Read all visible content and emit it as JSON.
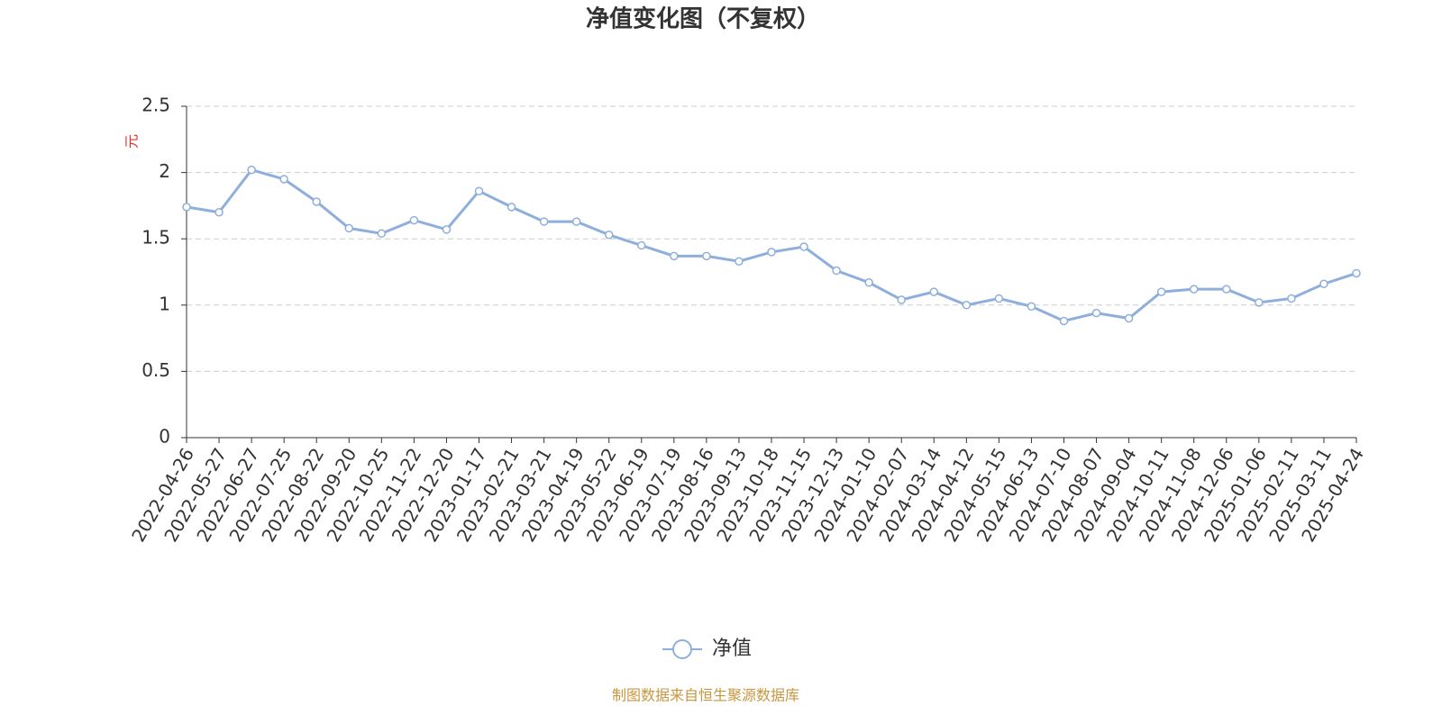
{
  "chart_data": {
    "type": "line",
    "title": "净值变化图（不复权）",
    "y_label": "元",
    "source": "制图数据来自恒生聚源数据库",
    "categories": [
      "2022-04-26",
      "2022-05-27",
      "2022-06-27",
      "2022-07-25",
      "2022-08-22",
      "2022-09-20",
      "2022-10-25",
      "2022-11-22",
      "2022-12-20",
      "2023-01-17",
      "2023-02-21",
      "2023-03-21",
      "2023-04-19",
      "2023-05-22",
      "2023-06-19",
      "2023-07-19",
      "2023-08-16",
      "2023-09-13",
      "2023-10-18",
      "2023-11-15",
      "2023-12-13",
      "2024-01-10",
      "2024-02-07",
      "2024-03-14",
      "2024-04-12",
      "2024-05-15",
      "2024-06-13",
      "2024-07-10",
      "2024-08-07",
      "2024-09-04",
      "2024-10-11",
      "2024-11-08",
      "2024-12-06",
      "2025-01-06",
      "2025-02-11",
      "2025-03-11",
      "2025-04-24"
    ],
    "series": [
      {
        "name": "净值",
        "color": "#8eafdc",
        "values": [
          1.74,
          1.7,
          2.02,
          1.95,
          1.78,
          1.58,
          1.54,
          1.64,
          1.57,
          1.86,
          1.74,
          1.63,
          1.63,
          1.53,
          1.45,
          1.37,
          1.37,
          1.33,
          1.4,
          1.44,
          1.26,
          1.17,
          1.04,
          1.1,
          1.0,
          1.05,
          0.99,
          0.88,
          0.94,
          0.9,
          1.1,
          1.12,
          1.12,
          1.02,
          1.05,
          1.16,
          1.24
        ]
      }
    ],
    "ylim": [
      0,
      2.5
    ],
    "yticks": [
      0,
      0.5,
      1,
      1.5,
      2,
      2.5
    ],
    "grid": true
  }
}
